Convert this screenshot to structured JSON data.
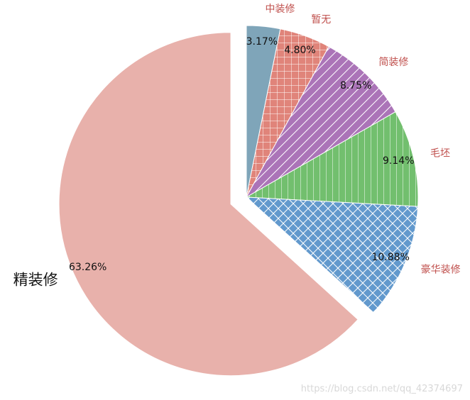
{
  "chart_data": {
    "type": "pie",
    "title": "",
    "start_angle_deg": 90,
    "direction": "clockwise",
    "slices": [
      {
        "label": "中装修",
        "value": 3.17,
        "pct_label": "3.17%",
        "color": "#7fa5b9",
        "label_color": "#c0504d",
        "hatch": "none",
        "explode": false
      },
      {
        "label": "暂无",
        "value": 4.8,
        "pct_label": "4.80%",
        "color": "#e0847a",
        "label_color": "#c0504d",
        "hatch": "grid",
        "explode": false
      },
      {
        "label": "简装修",
        "value": 8.75,
        "pct_label": "8.75%",
        "color": "#ab74b8",
        "label_color": "#c0504d",
        "hatch": "diagonal",
        "explode": false
      },
      {
        "label": "毛坯",
        "value": 9.14,
        "pct_label": "9.14%",
        "color": "#72bf6e",
        "label_color": "#c0504d",
        "hatch": "vertical",
        "explode": false
      },
      {
        "label": "豪华装修",
        "value": 10.88,
        "pct_label": "10.88%",
        "color": "#6299cd",
        "label_color": "#c0504d",
        "hatch": "crosshatch",
        "explode": false
      },
      {
        "label": "精装修",
        "value": 63.26,
        "pct_label": "63.26%",
        "color": "#e8b1ab",
        "label_color": "#111111",
        "hatch": "none",
        "explode": true
      }
    ]
  },
  "watermark": "https://blog.csdn.net/qq_42374697"
}
